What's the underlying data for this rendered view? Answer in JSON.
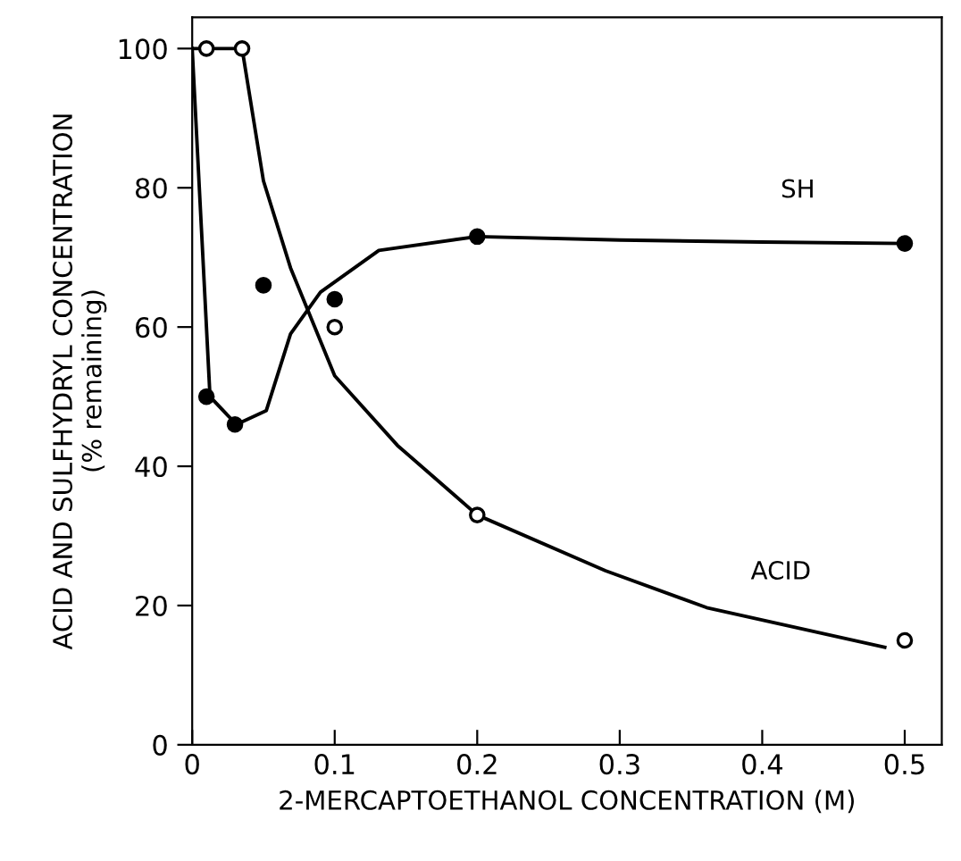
{
  "chart_data": {
    "type": "scatter",
    "xlabel": "2-MERCAPTOETHANOL CONCENTRATION (M)",
    "ylabel": "ACID AND SULFHYDRYL CONCENTRATION\n(% remaining)",
    "xlim": [
      0,
      0.526
    ],
    "ylim": [
      0,
      104.5
    ],
    "xticks": [
      0,
      0.1,
      0.2,
      0.3,
      0.4,
      0.5
    ],
    "yticks": [
      0,
      20,
      40,
      60,
      80,
      100
    ],
    "grid": false,
    "series": [
      {
        "type": "line",
        "name": "SH",
        "color": "#000000",
        "marker": "none",
        "x": [
          0,
          0.0125,
          0.031,
          0.052,
          0.069,
          0.09,
          0.131,
          0.2,
          0.3,
          0.4,
          0.5
        ],
        "values": [
          100,
          50,
          46,
          48,
          59,
          65,
          71,
          73,
          72.5,
          72.2,
          72
        ]
      },
      {
        "type": "line",
        "name": "ACID",
        "color": "#000000",
        "marker": "none",
        "x": [
          0,
          0.01,
          0.035,
          0.05,
          0.069,
          0.081,
          0.1,
          0.144,
          0.2,
          0.29,
          0.361,
          0.486
        ],
        "values": [
          100,
          100,
          100,
          81,
          68.5,
          62.5,
          53,
          43,
          33,
          25,
          19.7,
          14
        ]
      },
      {
        "color": "#000000",
        "marker": "circle",
        "x": [
          0.01,
          0.03,
          0.05,
          0.1,
          0.2,
          0.5
        ],
        "values": [
          50,
          46,
          66,
          64,
          73,
          72
        ]
      },
      {
        "color": "#ffffff",
        "marker": "circle",
        "x": [
          0.01,
          0.035,
          0.1,
          0.2,
          0.5
        ],
        "values": [
          100,
          100,
          60,
          33,
          15
        ]
      }
    ]
  }
}
